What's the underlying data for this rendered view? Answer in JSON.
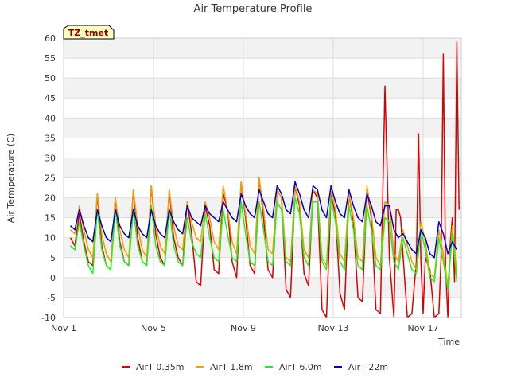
{
  "chart_data": {
    "type": "line",
    "title": "Air Temperature Profile",
    "xlabel": "Time",
    "ylabel": "Air Termperature (C)",
    "badge": "TZ_tmet",
    "xlim": [
      1,
      18.7
    ],
    "ylim": [
      -10,
      60
    ],
    "yticks": [
      -10,
      -5,
      0,
      5,
      10,
      15,
      20,
      25,
      30,
      35,
      40,
      45,
      50,
      55,
      60
    ],
    "xticks": [
      {
        "value": 1,
        "label": "Nov 1"
      },
      {
        "value": 5,
        "label": "Nov 5"
      },
      {
        "value": 9,
        "label": "Nov 9"
      },
      {
        "value": 13,
        "label": "Nov 13"
      },
      {
        "value": 17,
        "label": "Nov 17"
      }
    ],
    "grid": true,
    "legend_position": "bottom",
    "series": [
      {
        "name": "AirT 0.35m",
        "color": "#dd0000",
        "x": [
          1.3,
          1.5,
          1.7,
          1.9,
          2.1,
          2.3,
          2.5,
          2.7,
          2.9,
          3.1,
          3.3,
          3.5,
          3.7,
          3.9,
          4.1,
          4.3,
          4.5,
          4.7,
          4.9,
          5.1,
          5.3,
          5.5,
          5.7,
          5.9,
          6.1,
          6.3,
          6.5,
          6.7,
          6.9,
          7.1,
          7.3,
          7.5,
          7.7,
          7.9,
          8.1,
          8.3,
          8.5,
          8.7,
          8.9,
          9.1,
          9.3,
          9.5,
          9.7,
          9.9,
          10.1,
          10.3,
          10.5,
          10.7,
          10.9,
          11.1,
          11.3,
          11.5,
          11.7,
          11.9,
          12.1,
          12.3,
          12.5,
          12.7,
          12.9,
          13.1,
          13.3,
          13.5,
          13.7,
          13.9,
          14.1,
          14.3,
          14.5,
          14.7,
          14.9,
          15.1,
          15.3,
          15.5,
          15.7,
          15.8,
          15.9,
          16.0,
          16.1,
          16.3,
          16.5,
          16.7,
          16.8,
          16.9,
          17.0,
          17.1,
          17.3,
          17.5,
          17.7,
          17.8,
          17.9,
          18.0,
          18.1,
          18.2,
          18.3,
          18.4,
          18.5,
          18.6
        ],
        "y": [
          10,
          8,
          16,
          9,
          4,
          3,
          21,
          8,
          3,
          2,
          20,
          9,
          4,
          3,
          22,
          10,
          4,
          3,
          23,
          11,
          5,
          3,
          22,
          10,
          5,
          3,
          19,
          11,
          -1,
          -2,
          18,
          13,
          2,
          1,
          21,
          17,
          4,
          0,
          24,
          15,
          3,
          1,
          25,
          15,
          2,
          0,
          22,
          20,
          -3,
          -5,
          23,
          18,
          1,
          -2,
          22,
          20,
          -8,
          -10,
          21,
          16,
          -4,
          -8,
          21,
          14,
          -5,
          -6,
          22,
          15,
          -8,
          -9,
          48,
          5,
          -10,
          17,
          17,
          15,
          6,
          -10,
          -9,
          4,
          36,
          4,
          -9,
          5,
          2,
          -10,
          -9,
          5,
          56,
          3,
          -10,
          8,
          15,
          -1,
          59,
          17
        ]
      },
      {
        "name": "AirT 1.8m",
        "color": "#f0a000",
        "x": [
          1.3,
          1.5,
          1.7,
          1.9,
          2.1,
          2.3,
          2.5,
          2.7,
          2.9,
          3.1,
          3.3,
          3.5,
          3.7,
          3.9,
          4.1,
          4.3,
          4.5,
          4.7,
          4.9,
          5.1,
          5.3,
          5.5,
          5.7,
          5.9,
          6.1,
          6.3,
          6.5,
          6.7,
          6.9,
          7.1,
          7.3,
          7.5,
          7.7,
          7.9,
          8.1,
          8.3,
          8.5,
          8.7,
          8.9,
          9.1,
          9.3,
          9.5,
          9.7,
          9.9,
          10.1,
          10.3,
          10.5,
          10.7,
          10.9,
          11.1,
          11.3,
          11.5,
          11.7,
          11.9,
          12.1,
          12.3,
          12.5,
          12.7,
          12.9,
          13.1,
          13.3,
          13.5,
          13.7,
          13.9,
          14.1,
          14.3,
          14.5,
          14.7,
          14.9,
          15.1,
          15.3,
          15.5,
          15.7,
          15.9,
          16.1,
          16.3,
          16.5,
          16.7,
          16.9,
          17.1,
          17.3,
          17.5,
          17.7,
          17.9,
          18.1,
          18.3,
          18.5
        ],
        "y": [
          12,
          11,
          18,
          12,
          7,
          5,
          21,
          11,
          6,
          4,
          20,
          12,
          7,
          5,
          22,
          13,
          7,
          5,
          23,
          13,
          8,
          6,
          22,
          13,
          8,
          7,
          19,
          14,
          10,
          9,
          19,
          15,
          9,
          7,
          23,
          17,
          9,
          6,
          24,
          16,
          8,
          6,
          25,
          17,
          7,
          6,
          22,
          20,
          5,
          4,
          23,
          19,
          7,
          5,
          22,
          21,
          5,
          3,
          22,
          17,
          6,
          4,
          21,
          15,
          5,
          4,
          23,
          16,
          5,
          3,
          19,
          18,
          6,
          4,
          12,
          8,
          4,
          2,
          14,
          9,
          1,
          0,
          12,
          6,
          -2,
          13,
          1
        ]
      },
      {
        "name": "AirT 6.0m",
        "color": "#22ee22",
        "x": [
          1.3,
          1.5,
          1.7,
          1.9,
          2.1,
          2.3,
          2.5,
          2.7,
          2.9,
          3.1,
          3.3,
          3.5,
          3.7,
          3.9,
          4.1,
          4.3,
          4.5,
          4.7,
          4.9,
          5.1,
          5.3,
          5.5,
          5.7,
          5.9,
          6.1,
          6.3,
          6.5,
          6.7,
          6.9,
          7.1,
          7.3,
          7.5,
          7.7,
          7.9,
          8.1,
          8.3,
          8.5,
          8.7,
          8.9,
          9.1,
          9.3,
          9.5,
          9.7,
          9.9,
          10.1,
          10.3,
          10.5,
          10.7,
          10.9,
          11.1,
          11.3,
          11.5,
          11.7,
          11.9,
          12.1,
          12.3,
          12.5,
          12.7,
          12.9,
          13.1,
          13.3,
          13.5,
          13.7,
          13.9,
          14.1,
          14.3,
          14.5,
          14.7,
          14.9,
          15.1,
          15.3,
          15.5,
          15.7,
          15.9,
          16.1,
          16.3,
          16.5,
          16.7,
          16.9,
          17.1,
          17.3,
          17.5,
          17.7,
          17.9,
          18.1,
          18.3,
          18.5
        ],
        "y": [
          8,
          7,
          14,
          8,
          3,
          1,
          17,
          7,
          3,
          2,
          17,
          8,
          4,
          3,
          17,
          8,
          4,
          3,
          18,
          8,
          4,
          3,
          17,
          8,
          4,
          3,
          15,
          9,
          6,
          5,
          16,
          10,
          5,
          4,
          17,
          11,
          5,
          4,
          19,
          11,
          4,
          3,
          19,
          12,
          4,
          3,
          19,
          17,
          4,
          3,
          20,
          16,
          5,
          3,
          19,
          19,
          4,
          2,
          20,
          14,
          4,
          2,
          18,
          12,
          3,
          2,
          18,
          12,
          3,
          2,
          15,
          14,
          4,
          2,
          10,
          6,
          2,
          1,
          12,
          7,
          0,
          -1,
          10,
          4,
          -3,
          11,
          -1
        ]
      },
      {
        "name": "AirT 22m",
        "color": "#0000cc",
        "x": [
          1.3,
          1.5,
          1.7,
          1.9,
          2.1,
          2.3,
          2.5,
          2.7,
          2.9,
          3.1,
          3.3,
          3.5,
          3.7,
          3.9,
          4.1,
          4.3,
          4.5,
          4.7,
          4.9,
          5.1,
          5.3,
          5.5,
          5.7,
          5.9,
          6.1,
          6.3,
          6.5,
          6.7,
          6.9,
          7.1,
          7.3,
          7.5,
          7.7,
          7.9,
          8.1,
          8.3,
          8.5,
          8.7,
          8.9,
          9.1,
          9.3,
          9.5,
          9.7,
          9.9,
          10.1,
          10.3,
          10.5,
          10.7,
          10.9,
          11.1,
          11.3,
          11.5,
          11.7,
          11.9,
          12.1,
          12.3,
          12.5,
          12.7,
          12.9,
          13.1,
          13.3,
          13.5,
          13.7,
          13.9,
          14.1,
          14.3,
          14.5,
          14.7,
          14.9,
          15.1,
          15.3,
          15.5,
          15.7,
          15.9,
          16.1,
          16.3,
          16.5,
          16.7,
          16.9,
          17.1,
          17.3,
          17.5,
          17.7,
          17.9,
          18.1,
          18.3,
          18.5
        ],
        "y": [
          13,
          12,
          17,
          13,
          10,
          9,
          17,
          13,
          10,
          9,
          17,
          13,
          11,
          10,
          17,
          13,
          11,
          10,
          17,
          13,
          11,
          10,
          17,
          14,
          12,
          11,
          18,
          15,
          14,
          13,
          18,
          16,
          15,
          14,
          19,
          17,
          15,
          14,
          21,
          18,
          16,
          15,
          22,
          19,
          16,
          15,
          23,
          21,
          17,
          16,
          24,
          21,
          17,
          15,
          23,
          22,
          17,
          15,
          23,
          19,
          16,
          15,
          22,
          18,
          15,
          14,
          21,
          18,
          14,
          13,
          18,
          18,
          12,
          10,
          11,
          9,
          7,
          6,
          12,
          10,
          6,
          5,
          14,
          11,
          6,
          9,
          7
        ]
      }
    ]
  }
}
